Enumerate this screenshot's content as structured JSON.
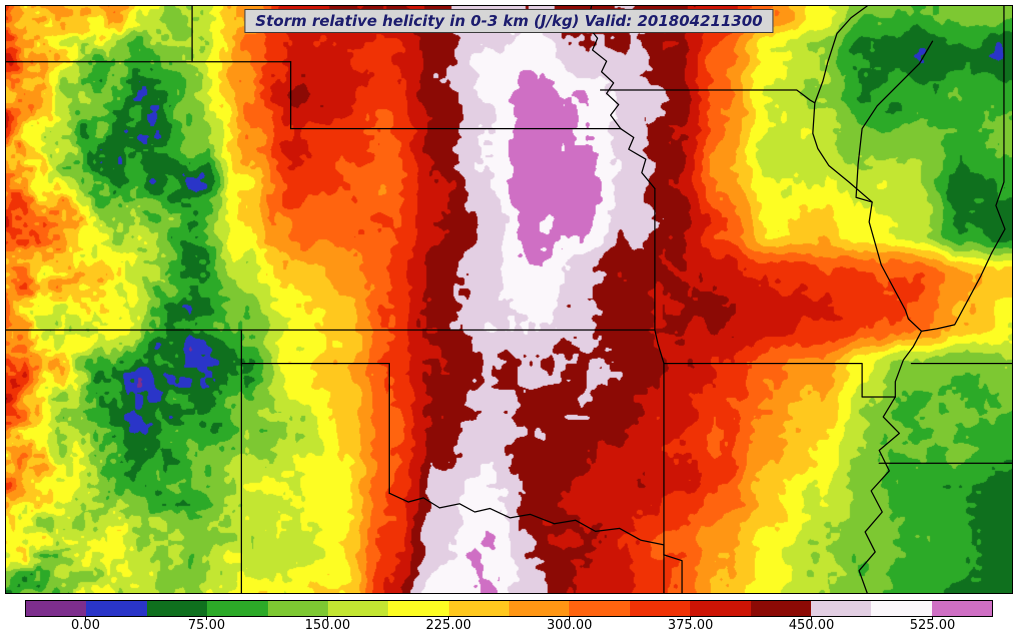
{
  "figure": {
    "title": "Storm relative helicity in 0-3 km (J/kg) Valid: 201804211300"
  },
  "chart_data": {
    "type": "heatmap",
    "title": "Storm relative helicity in 0-3 km (J/kg) Valid: 201804211300",
    "variable": "Storm relative helicity in 0-3 km",
    "units": "J/kg",
    "valid_time": "201804211300",
    "colorbar": {
      "min": -37.5,
      "max": 562.5,
      "level_step": 37.5,
      "colors": [
        "#7d2e8d",
        "#2a35c8",
        "#0f701e",
        "#2caa28",
        "#7dc832",
        "#c3e632",
        "#fdfd23",
        "#ffc81e",
        "#ff9614",
        "#ff640f",
        "#f03205",
        "#cd1405",
        "#8c0a05",
        "#e3cfe3",
        "#fbf7fb",
        "#cf6fc4"
      ],
      "ticks": [
        {
          "value": 0,
          "label": "0.00"
        },
        {
          "value": 75,
          "label": "75.00"
        },
        {
          "value": 150,
          "label": "150.00"
        },
        {
          "value": 225,
          "label": "225.00"
        },
        {
          "value": 300,
          "label": "300.00"
        },
        {
          "value": 375,
          "label": "375.00"
        },
        {
          "value": 450,
          "label": "450.00"
        },
        {
          "value": 525,
          "label": "525.00"
        }
      ]
    },
    "grid": {
      "cols": 22,
      "rows": 14,
      "values": [
        [
          340,
          300,
          250,
          160,
          140,
          280,
          390,
          420,
          410,
          430,
          460,
          450,
          430,
          450,
          430,
          390,
          310,
          230,
          120,
          110,
          130,
          120
        ],
        [
          360,
          280,
          180,
          130,
          160,
          300,
          410,
          380,
          360,
          420,
          480,
          520,
          470,
          460,
          420,
          330,
          180,
          160,
          60,
          40,
          90,
          30
        ],
        [
          300,
          220,
          140,
          90,
          180,
          320,
          420,
          400,
          350,
          430,
          500,
          545,
          530,
          480,
          430,
          300,
          160,
          140,
          80,
          100,
          120,
          100
        ],
        [
          330,
          180,
          100,
          60,
          130,
          300,
          400,
          360,
          330,
          420,
          490,
          550,
          540,
          470,
          420,
          290,
          170,
          180,
          130,
          140,
          110,
          130
        ],
        [
          360,
          240,
          130,
          80,
          50,
          240,
          380,
          340,
          310,
          400,
          480,
          555,
          545,
          460,
          410,
          300,
          190,
          200,
          170,
          150,
          60,
          90
        ],
        [
          330,
          280,
          170,
          120,
          60,
          200,
          330,
          310,
          330,
          410,
          470,
          540,
          520,
          450,
          420,
          330,
          220,
          240,
          210,
          180,
          90,
          60
        ],
        [
          300,
          250,
          200,
          150,
          100,
          160,
          260,
          280,
          340,
          420,
          460,
          510,
          480,
          440,
          430,
          400,
          360,
          350,
          340,
          330,
          280,
          230
        ],
        [
          280,
          220,
          180,
          130,
          90,
          100,
          220,
          260,
          350,
          430,
          470,
          490,
          450,
          430,
          420,
          410,
          390,
          370,
          350,
          330,
          260,
          200
        ],
        [
          320,
          260,
          150,
          60,
          50,
          60,
          200,
          250,
          340,
          420,
          450,
          460,
          440,
          420,
          400,
          380,
          330,
          290,
          200,
          150,
          120,
          140
        ],
        [
          300,
          200,
          120,
          80,
          70,
          130,
          180,
          230,
          330,
          430,
          460,
          450,
          430,
          410,
          390,
          360,
          300,
          250,
          150,
          120,
          110,
          110
        ],
        [
          260,
          170,
          130,
          100,
          120,
          150,
          170,
          210,
          320,
          440,
          480,
          440,
          420,
          400,
          380,
          340,
          280,
          220,
          130,
          110,
          100,
          90
        ],
        [
          220,
          150,
          140,
          120,
          140,
          160,
          180,
          200,
          340,
          470,
          510,
          430,
          410,
          390,
          360,
          310,
          250,
          190,
          140,
          110,
          80,
          70
        ],
        [
          180,
          160,
          150,
          130,
          150,
          170,
          200,
          210,
          360,
          490,
          530,
          450,
          400,
          380,
          340,
          280,
          220,
          160,
          120,
          90,
          70,
          60
        ],
        [
          160,
          170,
          160,
          140,
          160,
          180,
          220,
          230,
          380,
          500,
          540,
          470,
          410,
          370,
          330,
          260,
          200,
          140,
          100,
          80,
          60,
          50
        ]
      ]
    },
    "geo_borders": [
      {
        "name": "co-wy-ne-41n",
        "pts": [
          [
            0,
            0.095
          ],
          [
            0.283,
            0.095
          ]
        ]
      },
      {
        "name": "ne-panhandle-104w",
        "pts": [
          [
            0.185,
            0
          ],
          [
            0.185,
            0.095
          ]
        ]
      },
      {
        "name": "co-ne-102w",
        "pts": [
          [
            0.283,
            0.095
          ],
          [
            0.283,
            0.209
          ]
        ]
      },
      {
        "name": "ne-ks-40n",
        "pts": [
          [
            0.283,
            0.209
          ],
          [
            0.611,
            0.209
          ]
        ]
      },
      {
        "name": "missouri-river-ne",
        "pts": [
          [
            0.611,
            0.209
          ],
          [
            0.601,
            0.186
          ],
          [
            0.609,
            0.168
          ],
          [
            0.597,
            0.149
          ],
          [
            0.604,
            0.131
          ],
          [
            0.592,
            0.112
          ],
          [
            0.597,
            0.094
          ],
          [
            0.583,
            0.075
          ],
          [
            0.588,
            0.055
          ],
          [
            0.578,
            0.033
          ],
          [
            0.582,
            0
          ]
        ]
      },
      {
        "name": "missouri-river-kc",
        "pts": [
          [
            0.611,
            0.209
          ],
          [
            0.624,
            0.224
          ],
          [
            0.619,
            0.244
          ],
          [
            0.636,
            0.261
          ],
          [
            0.632,
            0.284
          ],
          [
            0.645,
            0.311
          ]
        ]
      },
      {
        "name": "mo-ks-ar-west",
        "pts": [
          [
            0.645,
            0.311
          ],
          [
            0.645,
            0.552
          ],
          [
            0.648,
            0.575
          ],
          [
            0.654,
            0.609
          ],
          [
            0.654,
            1.0
          ]
        ]
      },
      {
        "name": "ia-mo-north",
        "pts": [
          [
            0.591,
            0.143
          ],
          [
            0.786,
            0.143
          ],
          [
            0.793,
            0.152
          ],
          [
            0.799,
            0.16
          ],
          [
            0.804,
            0.165
          ]
        ]
      },
      {
        "name": "mississippi-upper",
        "pts": [
          [
            0.804,
            0.165
          ],
          [
            0.812,
            0.128
          ],
          [
            0.817,
            0.095
          ],
          [
            0.826,
            0.047
          ],
          [
            0.84,
            0.02
          ],
          [
            0.856,
            0
          ]
        ]
      },
      {
        "name": "mississippi-mo-east",
        "pts": [
          [
            0.804,
            0.165
          ],
          [
            0.802,
            0.217
          ],
          [
            0.807,
            0.243
          ],
          [
            0.818,
            0.272
          ],
          [
            0.838,
            0.3
          ],
          [
            0.861,
            0.334
          ],
          [
            0.858,
            0.368
          ],
          [
            0.87,
            0.441
          ],
          [
            0.894,
            0.518
          ],
          [
            0.897,
            0.533
          ],
          [
            0.91,
            0.554
          ],
          [
            0.902,
            0.58
          ],
          [
            0.892,
            0.603
          ],
          [
            0.884,
            0.64
          ],
          [
            0.884,
            0.666
          ]
        ]
      },
      {
        "name": "mo-bootheel",
        "pts": [
          [
            0.654,
            0.609
          ],
          [
            0.851,
            0.609
          ],
          [
            0.851,
            0.666
          ],
          [
            0.884,
            0.666
          ]
        ]
      },
      {
        "name": "mississippi-lower",
        "pts": [
          [
            0.884,
            0.666
          ],
          [
            0.872,
            0.7
          ],
          [
            0.888,
            0.728
          ],
          [
            0.868,
            0.757
          ],
          [
            0.878,
            0.792
          ],
          [
            0.86,
            0.826
          ],
          [
            0.871,
            0.862
          ],
          [
            0.854,
            0.896
          ],
          [
            0.864,
            0.93
          ],
          [
            0.848,
            0.962
          ],
          [
            0.856,
            1.0
          ]
        ]
      },
      {
        "name": "ks-ok-co-nm-37n",
        "pts": [
          [
            0,
            0.552
          ],
          [
            0.645,
            0.552
          ]
        ]
      },
      {
        "name": "nm-east-103w",
        "pts": [
          [
            0.234,
            0.552
          ],
          [
            0.234,
            1.0
          ]
        ]
      },
      {
        "name": "ok-panhandle-36-5n",
        "pts": [
          [
            0.234,
            0.609
          ],
          [
            0.381,
            0.609
          ]
        ]
      },
      {
        "name": "tx-ok-100w",
        "pts": [
          [
            0.381,
            0.609
          ],
          [
            0.381,
            0.83
          ]
        ]
      },
      {
        "name": "red-river",
        "pts": [
          [
            0.381,
            0.83
          ],
          [
            0.4,
            0.845
          ],
          [
            0.415,
            0.838
          ],
          [
            0.431,
            0.855
          ],
          [
            0.451,
            0.848
          ],
          [
            0.466,
            0.862
          ],
          [
            0.481,
            0.856
          ],
          [
            0.501,
            0.872
          ],
          [
            0.521,
            0.866
          ],
          [
            0.545,
            0.882
          ],
          [
            0.566,
            0.876
          ],
          [
            0.586,
            0.895
          ],
          [
            0.61,
            0.89
          ],
          [
            0.631,
            0.91
          ],
          [
            0.654,
            0.918
          ],
          [
            0.654,
            0.935
          ]
        ]
      },
      {
        "name": "tx-ar",
        "pts": [
          [
            0.654,
            0.935
          ],
          [
            0.672,
            0.945
          ],
          [
            0.672,
            1.0
          ]
        ]
      },
      {
        "name": "illinois-river",
        "pts": [
          [
            0.921,
            0.06
          ],
          [
            0.908,
            0.098
          ],
          [
            0.89,
            0.129
          ],
          [
            0.866,
            0.17
          ],
          [
            0.851,
            0.209
          ],
          [
            0.847,
            0.27
          ],
          [
            0.845,
            0.326
          ],
          [
            0.861,
            0.334
          ]
        ]
      },
      {
        "name": "il-in-wabash-ohio",
        "pts": [
          [
            0.992,
            0
          ],
          [
            0.992,
            0.3
          ],
          [
            0.984,
            0.34
          ],
          [
            0.993,
            0.38
          ],
          [
            0.98,
            0.42
          ],
          [
            0.969,
            0.46
          ],
          [
            0.943,
            0.543
          ],
          [
            0.925,
            0.55
          ],
          [
            0.91,
            0.554
          ]
        ]
      },
      {
        "name": "ky-tn-36-5n",
        "pts": [
          [
            0.9,
            0.609
          ],
          [
            1.0,
            0.609
          ]
        ]
      },
      {
        "name": "tn-ms-35n",
        "pts": [
          [
            0.868,
            0.779
          ],
          [
            1.0,
            0.779
          ]
        ]
      }
    ],
    "render_hints": {
      "seed": 1337,
      "amp_base": 45,
      "amp_west": 130,
      "west_fade_end": 0.34,
      "noise_octaves": [
        {
          "cols": 18,
          "rows": 12,
          "weight": 0.45
        },
        {
          "cols": 55,
          "rows": 34,
          "weight": 0.33
        },
        {
          "cols": 160,
          "rows": 95,
          "weight": 0.22
        }
      ]
    }
  }
}
